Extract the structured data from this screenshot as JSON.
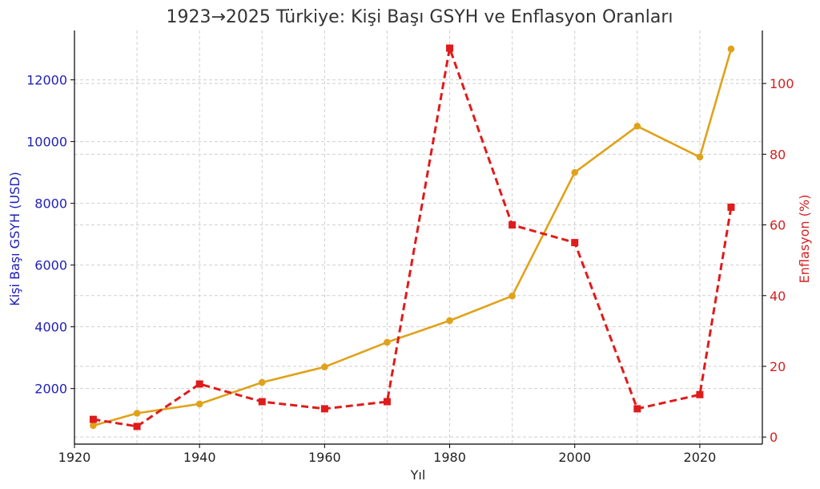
{
  "chart_data": {
    "type": "line",
    "title": "1923→2025 Türkiye: Kişi Başı GSYH ve Enflasyon Oranları",
    "xlabel": "Yıl",
    "ylabel_left": "Kişi Başı GSYH (USD)",
    "ylabel_right": "Enflasyon (%)",
    "x": [
      1923,
      1930,
      1940,
      1950,
      1960,
      1970,
      1980,
      1990,
      2000,
      2010,
      2020,
      2025
    ],
    "xlim": [
      1920,
      2030
    ],
    "xticks": [
      1920,
      1940,
      1960,
      1980,
      2000,
      2020
    ],
    "ylim_left": [
      200,
      13600
    ],
    "yticks_left": [
      2000,
      4000,
      6000,
      8000,
      10000,
      12000
    ],
    "ylim_right": [
      -2,
      115
    ],
    "yticks_right": [
      0,
      20,
      40,
      60,
      80,
      100
    ],
    "grid": true,
    "series": [
      {
        "axis": "left",
        "color": "#e0a21a",
        "line_style": "solid",
        "marker": "circle",
        "values": [
          800,
          1200,
          1500,
          2200,
          2700,
          3500,
          4200,
          5000,
          9000,
          10500,
          9500,
          13000
        ]
      },
      {
        "axis": "right",
        "color": "#e01b1b",
        "line_style": "dashed",
        "marker": "square",
        "values": [
          5,
          3,
          15,
          10,
          8,
          10,
          110,
          60,
          55,
          8,
          12,
          65
        ]
      }
    ],
    "colors": {
      "left_axis_text": "#1f1fb8",
      "right_axis_text": "#d42020",
      "title_text": "#333333"
    }
  }
}
